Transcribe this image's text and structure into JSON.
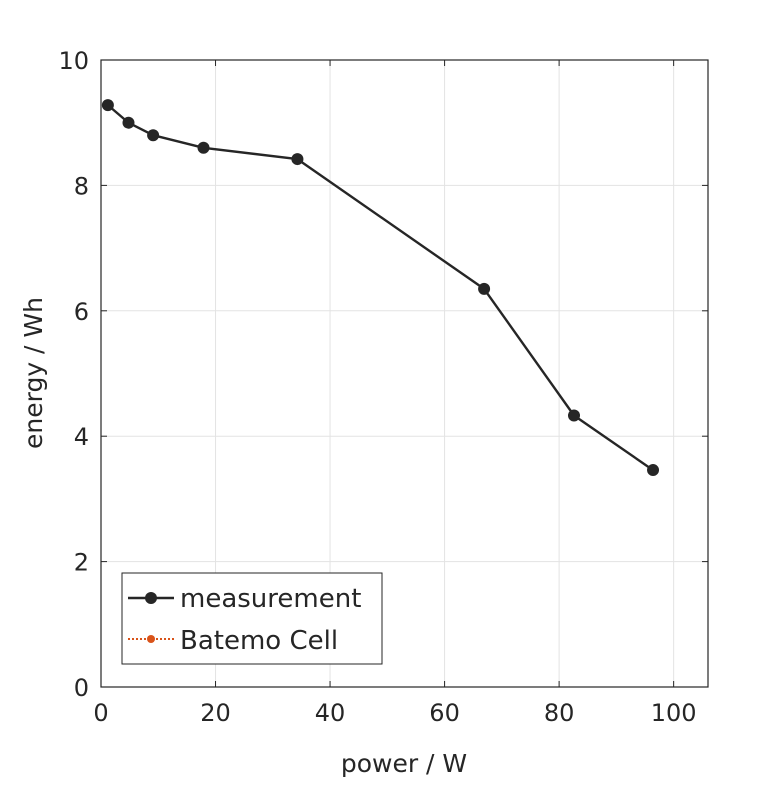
{
  "chart_data": {
    "type": "line",
    "xlabel": "power / W",
    "ylabel": "energy / Wh",
    "xlim": [
      0,
      106
    ],
    "ylim": [
      0,
      10
    ],
    "xticks": [
      "0",
      "20",
      "40",
      "60",
      "80",
      "100"
    ],
    "yticks": [
      "0",
      "2",
      "4",
      "6",
      "8",
      "10"
    ],
    "grid": true,
    "legend_position": "bottom-left",
    "series": [
      {
        "name": "measurement",
        "color": "#262626",
        "marker": "filled-circle",
        "line_style": "solid",
        "x": [
          1.2,
          4.8,
          9.1,
          17.9,
          34.3,
          66.9,
          82.6,
          96.4
        ],
        "y": [
          9.28,
          9.0,
          8.8,
          8.6,
          8.42,
          6.35,
          4.33,
          3.46
        ]
      },
      {
        "name": "Batemo Cell",
        "color": "#d95319",
        "marker": "filled-circle",
        "line_style": "dotted",
        "x": [],
        "y": []
      }
    ]
  }
}
